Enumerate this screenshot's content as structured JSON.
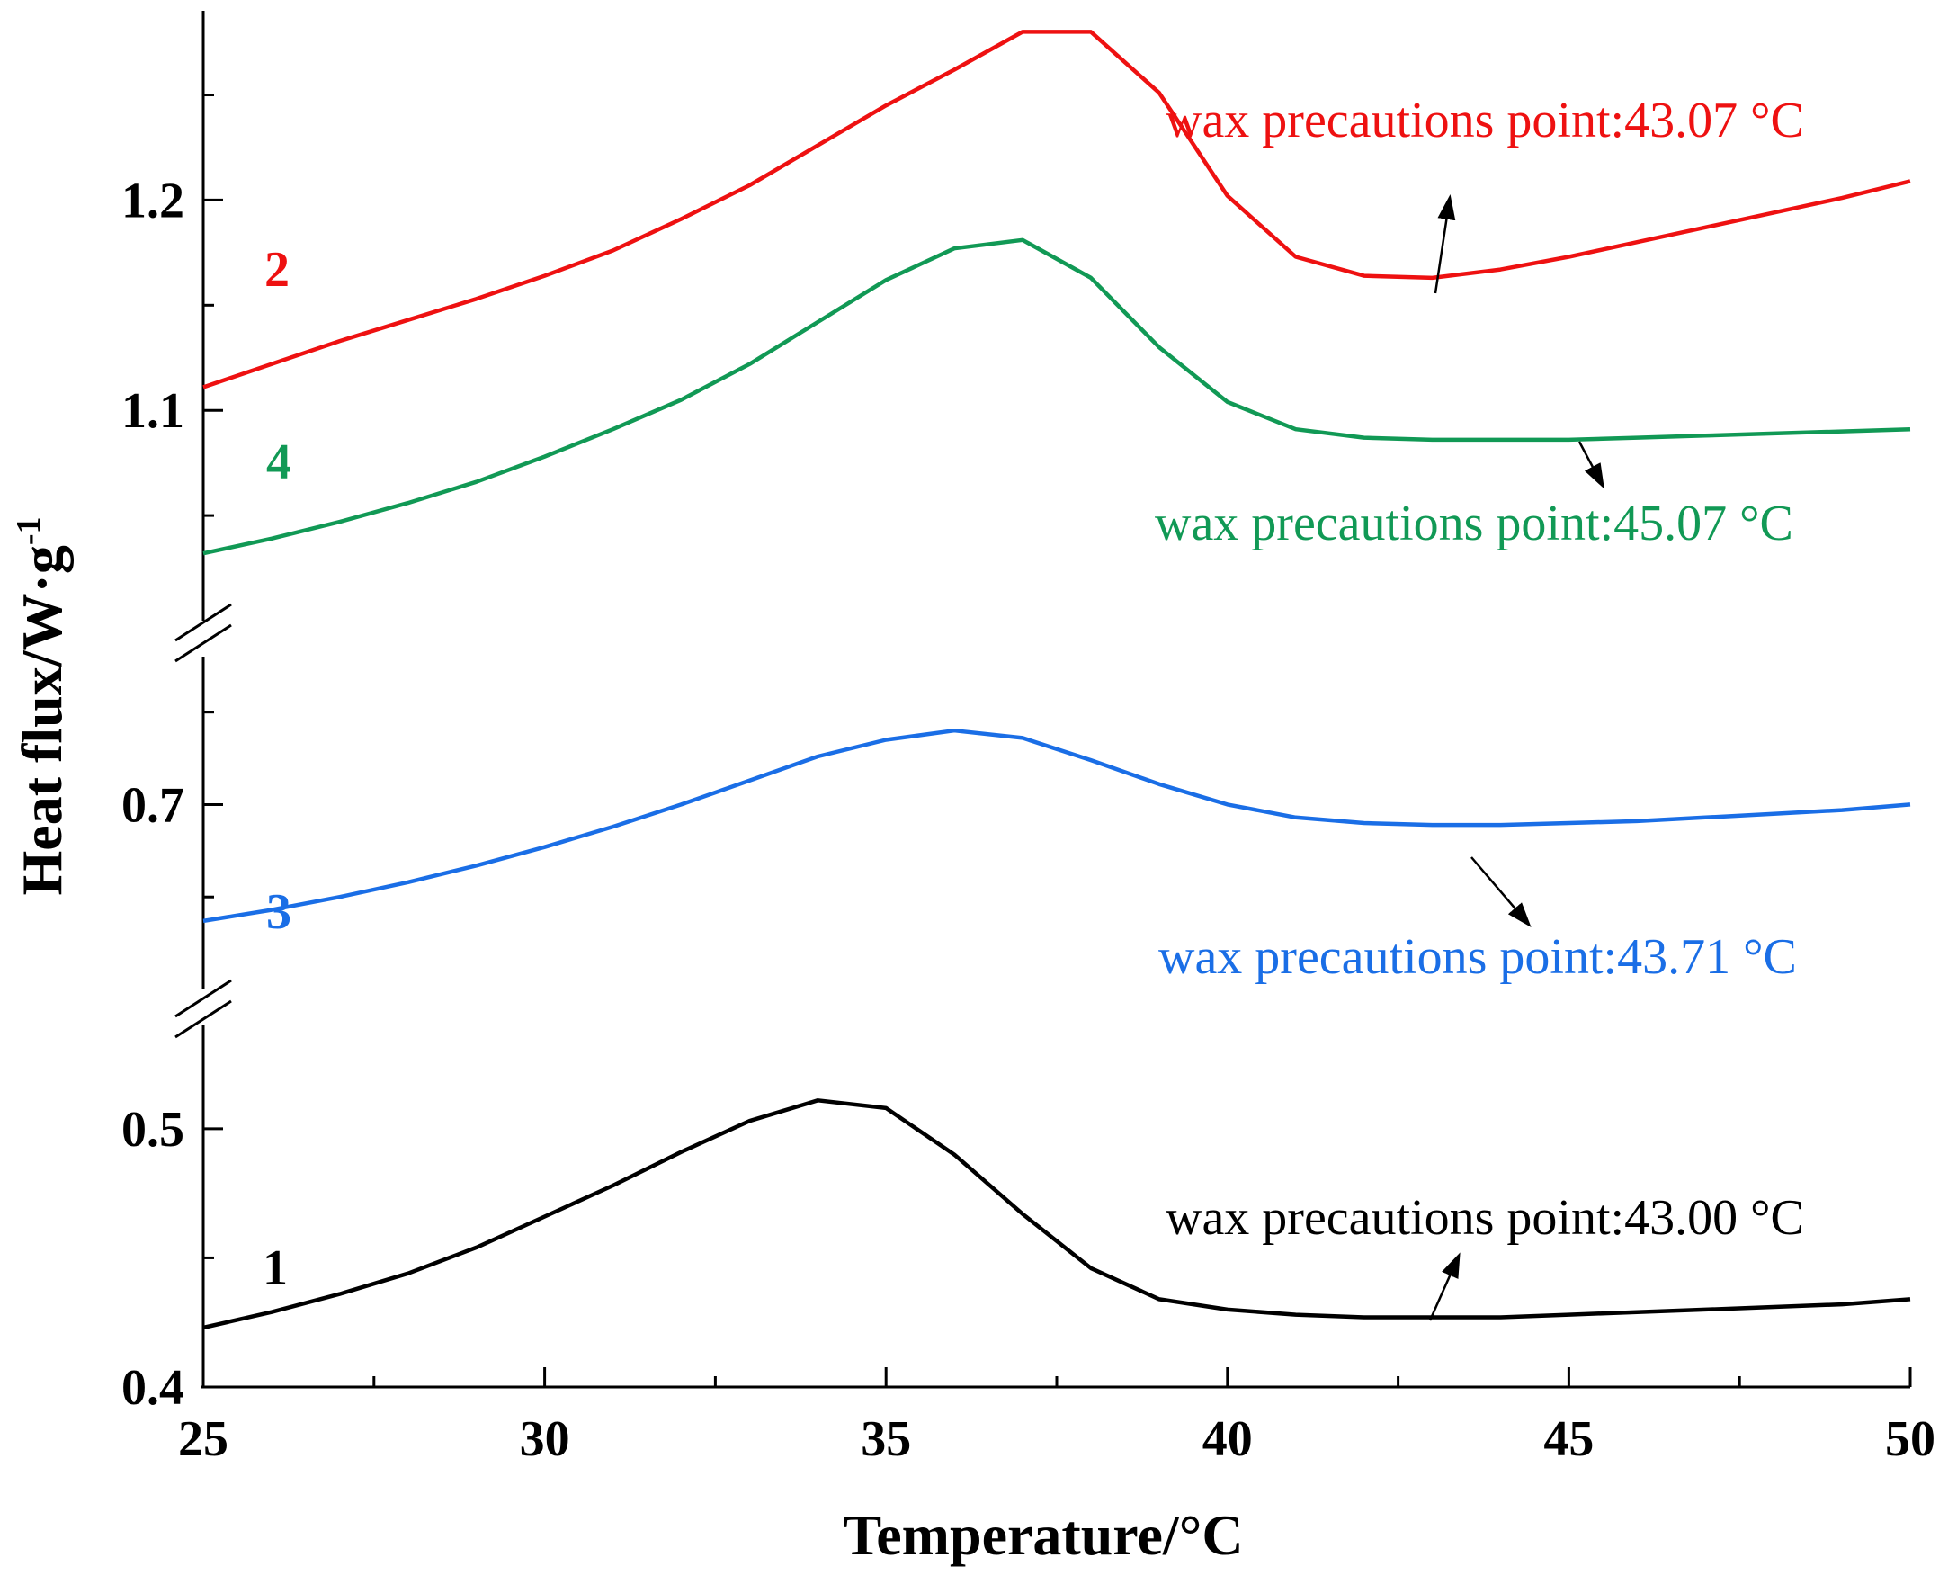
{
  "chart_data": {
    "type": "line",
    "title": "",
    "xlabel": "Temperature/°C",
    "ylabel": "Heat flux/W·g",
    "ylabel_superscript": "-1",
    "xlim": [
      25,
      50
    ],
    "x_ticks": [
      25,
      30,
      35,
      40,
      45,
      50
    ],
    "y_ticks": [
      "0.4",
      "0.5",
      "0.7",
      "1.1",
      "1.2"
    ],
    "broken_axis": true,
    "grid": false,
    "series": [
      {
        "name": "1",
        "color": "#000000",
        "annotation": "wax precautions point:43.00 °C",
        "x": [
          25,
          26,
          27,
          28,
          29,
          30,
          31,
          32,
          33,
          34,
          35,
          36,
          37,
          38,
          39,
          40,
          41,
          42,
          43,
          44,
          45,
          46,
          47,
          48,
          49,
          50
        ],
        "y": [
          0.423,
          0.429,
          0.436,
          0.444,
          0.454,
          0.466,
          0.478,
          0.491,
          0.503,
          0.511,
          0.508,
          0.49,
          0.467,
          0.446,
          0.434,
          0.43,
          0.428,
          0.427,
          0.427,
          0.427,
          0.428,
          0.429,
          0.43,
          0.431,
          0.432,
          0.434
        ]
      },
      {
        "name": "2",
        "color": "#ee1111",
        "annotation": "wax precautions point:43.07 °C",
        "x": [
          25,
          26,
          27,
          28,
          29,
          30,
          31,
          32,
          33,
          34,
          35,
          36,
          37,
          38,
          39,
          40,
          41,
          42,
          43,
          44,
          45,
          46,
          47,
          48,
          49,
          50
        ],
        "y": [
          1.111,
          1.122,
          1.133,
          1.143,
          1.153,
          1.164,
          1.176,
          1.191,
          1.207,
          1.226,
          1.245,
          1.262,
          1.28,
          1.28,
          1.251,
          1.202,
          1.173,
          1.164,
          1.163,
          1.167,
          1.173,
          1.18,
          1.187,
          1.194,
          1.201,
          1.209
        ]
      },
      {
        "name": "3",
        "color": "#1a6ee6",
        "annotation": "wax precautions point:43.71 °C",
        "x": [
          25,
          26,
          27,
          28,
          29,
          30,
          31,
          32,
          33,
          34,
          35,
          36,
          37,
          38,
          39,
          40,
          41,
          42,
          43,
          44,
          45,
          46,
          47,
          48,
          49,
          50
        ],
        "y": [
          0.637,
          0.643,
          0.65,
          0.658,
          0.667,
          0.677,
          0.688,
          0.7,
          0.713,
          0.726,
          0.735,
          0.74,
          0.736,
          0.724,
          0.711,
          0.7,
          0.693,
          0.69,
          0.689,
          0.689,
          0.69,
          0.691,
          0.693,
          0.695,
          0.697,
          0.7
        ]
      },
      {
        "name": "4",
        "color": "#119955",
        "annotation": "wax precautions point:45.07 °C",
        "x": [
          25,
          26,
          27,
          28,
          29,
          30,
          31,
          32,
          33,
          34,
          35,
          36,
          37,
          38,
          39,
          40,
          41,
          42,
          43,
          44,
          45,
          46,
          47,
          48,
          49,
          50
        ],
        "y": [
          1.032,
          1.039,
          1.047,
          1.056,
          1.066,
          1.078,
          1.091,
          1.105,
          1.122,
          1.142,
          1.162,
          1.177,
          1.181,
          1.163,
          1.13,
          1.104,
          1.091,
          1.087,
          1.086,
          1.086,
          1.086,
          1.087,
          1.088,
          1.089,
          1.09,
          1.091
        ]
      }
    ]
  }
}
